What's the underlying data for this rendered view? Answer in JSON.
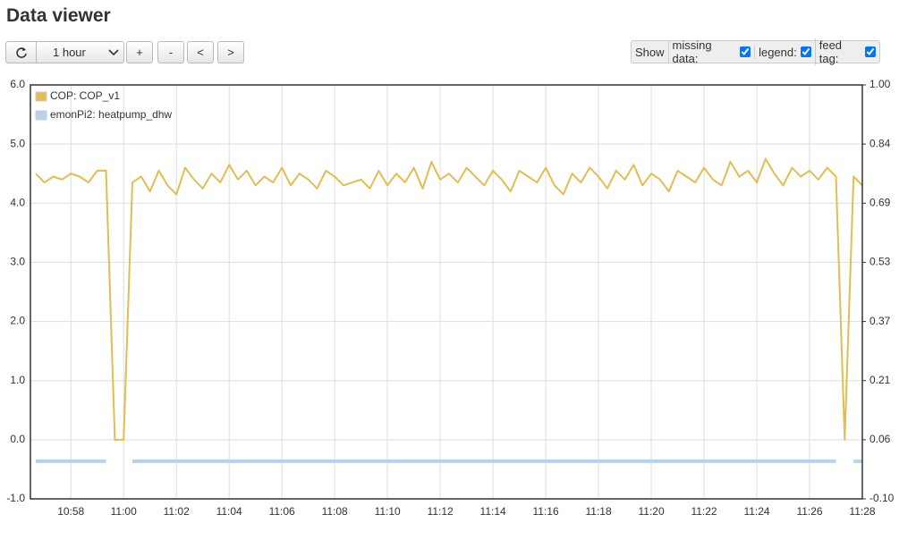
{
  "header": {
    "title": "Data viewer"
  },
  "toolbar": {
    "interval": "1 hour",
    "buttons": [
      "+",
      "-",
      "<",
      ">"
    ],
    "show": "Show",
    "options": [
      {
        "label": "missing data:",
        "checked": true
      },
      {
        "label": "legend:",
        "checked": true
      },
      {
        "label": "feed tag:",
        "checked": true
      }
    ]
  },
  "chart_data": {
    "type": "line",
    "legend": "top-left",
    "grid": true,
    "x": [
      "10:56:40",
      "10:57:00",
      "10:57:20",
      "10:57:40",
      "10:58:00",
      "10:58:20",
      "10:58:40",
      "10:59:00",
      "10:59:20",
      "10:59:40",
      "11:00:00",
      "11:00:20",
      "11:00:40",
      "11:01:00",
      "11:01:20",
      "11:01:40",
      "11:02:00",
      "11:02:20",
      "11:02:40",
      "11:03:00",
      "11:03:20",
      "11:03:40",
      "11:04:00",
      "11:04:20",
      "11:04:40",
      "11:05:00",
      "11:05:20",
      "11:05:40",
      "11:06:00",
      "11:06:20",
      "11:06:40",
      "11:07:00",
      "11:07:20",
      "11:07:40",
      "11:08:00",
      "11:08:20",
      "11:08:40",
      "11:09:00",
      "11:09:20",
      "11:09:40",
      "11:10:00",
      "11:10:20",
      "11:10:40",
      "11:11:00",
      "11:11:20",
      "11:11:40",
      "11:12:00",
      "11:12:20",
      "11:12:40",
      "11:13:00",
      "11:13:20",
      "11:13:40",
      "11:14:00",
      "11:14:20",
      "11:14:40",
      "11:15:00",
      "11:15:20",
      "11:15:40",
      "11:16:00",
      "11:16:20",
      "11:16:40",
      "11:17:00",
      "11:17:20",
      "11:17:40",
      "11:18:00",
      "11:18:20",
      "11:18:40",
      "11:19:00",
      "11:19:20",
      "11:19:40",
      "11:20:00",
      "11:20:20",
      "11:20:40",
      "11:21:00",
      "11:21:20",
      "11:21:40",
      "11:22:00",
      "11:22:20",
      "11:22:40",
      "11:23:00",
      "11:23:20",
      "11:23:40",
      "11:24:00",
      "11:24:20",
      "11:24:40",
      "11:25:00",
      "11:25:20",
      "11:25:40",
      "11:26:00",
      "11:26:20",
      "11:26:40",
      "11:27:00",
      "11:27:20",
      "11:27:40",
      "11:28:00"
    ],
    "xlim": [
      "10:56:28",
      "11:28:00"
    ],
    "xticks": [
      "10:58",
      "11:00",
      "11:02",
      "11:04",
      "11:06",
      "11:08",
      "11:10",
      "11:12",
      "11:14",
      "11:16",
      "11:18",
      "11:20",
      "11:22",
      "11:24",
      "11:26",
      "11:28"
    ],
    "ylim": [
      -1,
      6
    ],
    "yticks": [
      {
        "value": 6,
        "label": "6.0"
      },
      {
        "value": 5,
        "label": "5.0"
      },
      {
        "value": 4,
        "label": "4.0"
      },
      {
        "value": 3,
        "label": "3.0"
      },
      {
        "value": 2,
        "label": "2.0"
      },
      {
        "value": 1,
        "label": "1.0"
      },
      {
        "value": 0,
        "label": "0.0"
      },
      {
        "value": -1,
        "label": "-1.0"
      }
    ],
    "y2lim": [
      -0.1,
      1.0
    ],
    "y2ticks": [
      {
        "value": 1.0,
        "label": "1.00"
      },
      {
        "value": 0.8429,
        "label": "0.84"
      },
      {
        "value": 0.6857,
        "label": "0.69"
      },
      {
        "value": 0.5286,
        "label": "0.53"
      },
      {
        "value": 0.3714,
        "label": "0.37"
      },
      {
        "value": 0.2143,
        "label": "0.21"
      },
      {
        "value": 0.0571,
        "label": "0.06"
      },
      {
        "value": -0.1,
        "label": "-0.10"
      }
    ],
    "series": [
      {
        "name": "COP: COP_v1",
        "color": "#e2bd50",
        "values": [
          4.5,
          4.35,
          4.45,
          4.4,
          4.5,
          4.45,
          4.35,
          4.55,
          4.55,
          0,
          0,
          4.35,
          4.45,
          4.2,
          4.55,
          4.3,
          4.15,
          4.6,
          4.4,
          4.25,
          4.5,
          4.35,
          4.65,
          4.4,
          4.55,
          4.3,
          4.45,
          4.35,
          4.6,
          4.3,
          4.5,
          4.4,
          4.25,
          4.55,
          4.45,
          4.3,
          4.35,
          4.4,
          4.25,
          4.55,
          4.3,
          4.5,
          4.35,
          4.6,
          4.25,
          4.7,
          4.4,
          4.5,
          4.35,
          4.6,
          4.45,
          4.3,
          4.55,
          4.4,
          4.2,
          4.55,
          4.45,
          4.35,
          4.6,
          4.3,
          4.15,
          4.5,
          4.35,
          4.6,
          4.45,
          4.25,
          4.55,
          4.4,
          4.65,
          4.3,
          4.5,
          4.4,
          4.2,
          4.55,
          4.45,
          4.35,
          4.6,
          4.4,
          4.3,
          4.7,
          4.45,
          4.55,
          4.35,
          4.75,
          4.5,
          4.3,
          4.6,
          4.45,
          4.55,
          4.4,
          4.6,
          4.45,
          0,
          4.45,
          4.3
        ]
      },
      {
        "name": "emonPi2: heatpump_dhw",
        "color": "#b8d2ec",
        "axis": "y2",
        "values": [
          0,
          0,
          0,
          0,
          0,
          0,
          0,
          0,
          0,
          null,
          null,
          0,
          0,
          0,
          0,
          0,
          0,
          0,
          0,
          0,
          0,
          0,
          0,
          0,
          0,
          0,
          0,
          0,
          0,
          0,
          0,
          0,
          0,
          0,
          0,
          0,
          0,
          0,
          0,
          0,
          0,
          0,
          0,
          0,
          0,
          0,
          0,
          0,
          0,
          0,
          0,
          0,
          0,
          0,
          0,
          0,
          0,
          0,
          0,
          0,
          0,
          0,
          0,
          0,
          0,
          0,
          0,
          0,
          0,
          0,
          0,
          0,
          0,
          0,
          0,
          0,
          0,
          0,
          0,
          0,
          0,
          0,
          0,
          0,
          0,
          0,
          0,
          0,
          0,
          0,
          0,
          0,
          null,
          0,
          0
        ]
      }
    ]
  }
}
